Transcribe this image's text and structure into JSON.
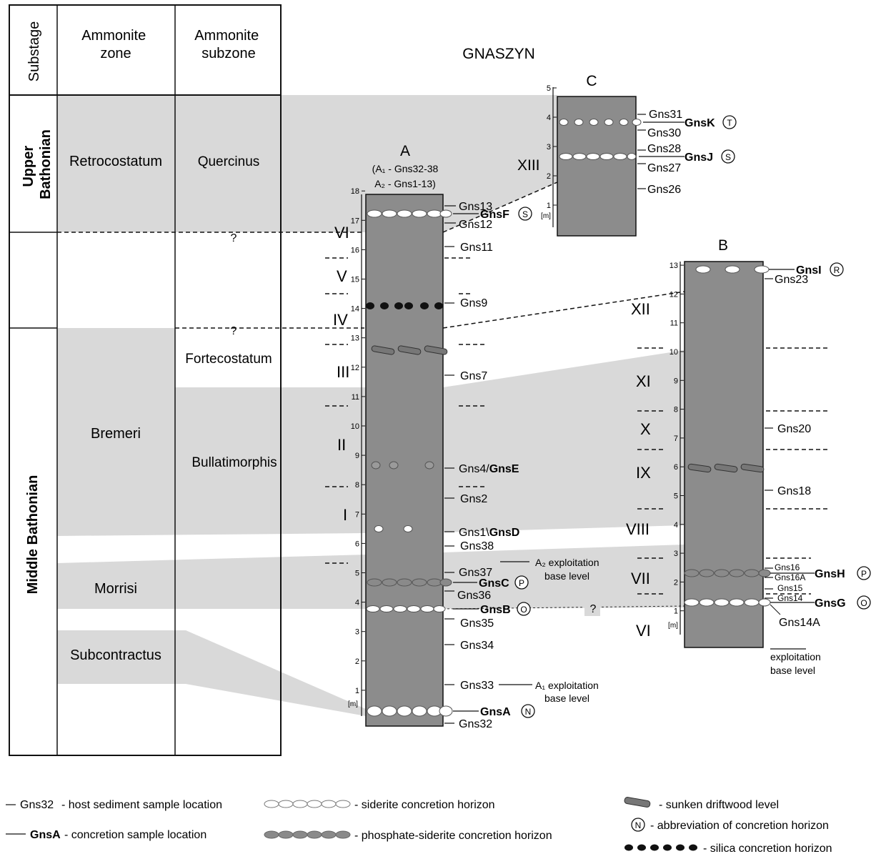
{
  "title": "GNASZYN",
  "table": {
    "headers": [
      "Substage",
      "Ammonite\nzone",
      "Ammonite\nsubzone"
    ],
    "substages": [
      {
        "label": "Upper\nBathonian"
      },
      {
        "label": "Middle Bathonian"
      }
    ],
    "zones": [
      "Retrocostatum",
      "Bremeri",
      "Morrisi",
      "Subcontractus"
    ],
    "subzones": [
      "Quercinus",
      "Fortecostatum",
      "Bullatimorphis"
    ],
    "query_mark": "?"
  },
  "sections": {
    "A": {
      "label": "A",
      "sublabel1": "(A₁ - Gns32-38",
      "sublabel2": "A₂ - Gns1-13)",
      "axis_unit": "[m]",
      "ticks": [
        "1",
        "2",
        "3",
        "4",
        "5",
        "6",
        "7",
        "8",
        "9",
        "10",
        "11",
        "12",
        "13",
        "14",
        "15",
        "16",
        "17",
        "18"
      ],
      "units": [
        "I",
        "II",
        "III",
        "IV",
        "V",
        "VI"
      ],
      "samples": [
        "Gns13",
        "Gns12",
        "Gns11",
        "Gns9",
        "Gns7",
        "Gns4/",
        "Gns2",
        "Gns1\\",
        "Gns38",
        "Gns37",
        "Gns36",
        "Gns35",
        "Gns34",
        "Gns33",
        "Gns32"
      ],
      "concretions": [
        "GnsF",
        "GnsE",
        "GnsD",
        "GnsC",
        "GnsB",
        "GnsA"
      ],
      "badges": [
        "S",
        "P",
        "O",
        "N"
      ],
      "notes": {
        "a2_line1": "A₂ exploitation",
        "a2_line2": "base level",
        "a1_line1": "A₁ exploitation",
        "a1_line2": "base level"
      }
    },
    "B": {
      "label": "B",
      "axis_unit": "[m]",
      "ticks": [
        "1",
        "2",
        "3",
        "4",
        "5",
        "6",
        "7",
        "8",
        "9",
        "10",
        "11",
        "12",
        "13"
      ],
      "units": [
        "VI",
        "VII",
        "VIII",
        "IX",
        "X",
        "XI",
        "XII"
      ],
      "samples": [
        "Gns23",
        "Gns20",
        "Gns18",
        "Gns16",
        "Gns16A",
        "Gns15",
        "Gns14",
        "Gns14A"
      ],
      "concretions": [
        "GnsI",
        "GnsH",
        "GnsG"
      ],
      "badges": [
        "R",
        "P",
        "O"
      ],
      "notes": {
        "line1": "exploitation",
        "line2": "base level"
      }
    },
    "C": {
      "label": "C",
      "axis_unit": "[m]",
      "ticks": [
        "1",
        "2",
        "3",
        "4",
        "5"
      ],
      "units": [
        "XIII"
      ],
      "samples": [
        "Gns31",
        "Gns30",
        "Gns28",
        "Gns27",
        "Gns26"
      ],
      "concretions": [
        "GnsK",
        "GnsJ"
      ],
      "badges": [
        "T",
        "S"
      ]
    }
  },
  "legend": {
    "host_sample": {
      "code": "Gns32",
      "text": "- host sediment sample location"
    },
    "concretion_sample": {
      "code": "GnsA",
      "text": "- concretion sample location"
    },
    "siderite": "- siderite concretion horizon",
    "phosphate": "- phosphate-siderite concretion horizon",
    "driftwood": "- sunken driftwood level",
    "abbrev": {
      "badge": "N",
      "text": "- abbreviation of concretion horizon"
    },
    "silica": "- silica concretion horizon"
  },
  "colors": {
    "column": "#8c8c8c",
    "band": "#d9d9d9",
    "phosphate": "#8a8a8a",
    "silica": "#111111"
  }
}
